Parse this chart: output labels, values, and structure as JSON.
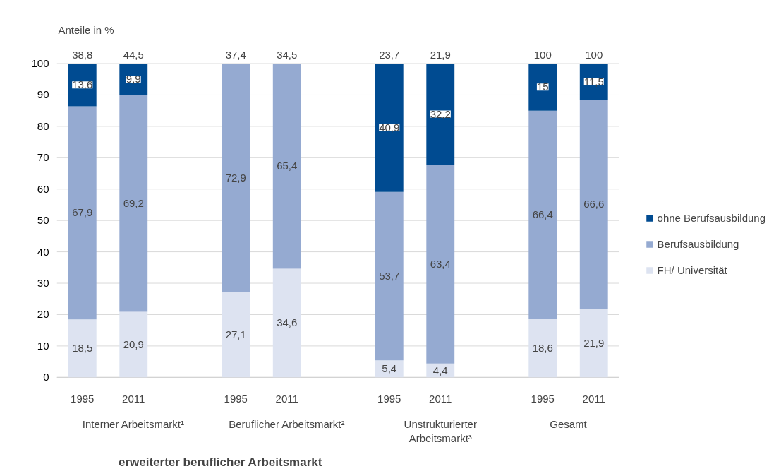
{
  "chart_data": {
    "type": "bar",
    "stacked": true,
    "ylabel": "Anteile in %",
    "categories": [
      "1995",
      "2011",
      null,
      "1995",
      "2011",
      null,
      "1995",
      "2011",
      null,
      "1995",
      "2011"
    ],
    "series": [
      {
        "name": "FH/ Universität",
        "color": "#dde3f1",
        "values": [
          18.5,
          20.9,
          null,
          27.1,
          34.6,
          null,
          5.4,
          4.4,
          null,
          18.6,
          21.9
        ],
        "value_labels": [
          "18,5",
          "20,9",
          null,
          "27,1",
          "34,6",
          null,
          "5,4",
          "4,4",
          null,
          "18,6",
          "21,9"
        ]
      },
      {
        "name": "Berufsausbildung",
        "color": "#95aad1",
        "values": [
          67.9,
          69.2,
          null,
          72.9,
          65.4,
          null,
          53.7,
          63.4,
          null,
          66.4,
          66.6
        ],
        "value_labels": [
          "67,9",
          "69,2",
          null,
          "72,9",
          "65,4",
          null,
          "53,7",
          "63,4",
          null,
          "66,4",
          "66,6"
        ]
      },
      {
        "name": "ohne Berufsausbildung",
        "color": "#004b91",
        "values": [
          13.6,
          9.9,
          null,
          null,
          null,
          null,
          40.9,
          32.2,
          null,
          15,
          11.5
        ],
        "value_labels": [
          "13,6",
          "9,9",
          null,
          null,
          null,
          null,
          "40,9",
          "32,2",
          null,
          "15",
          "11,5"
        ]
      }
    ],
    "ylim": [
      0,
      100
    ],
    "yticks": [
      0,
      10,
      20,
      30,
      40,
      50,
      60,
      70,
      80,
      90,
      100
    ],
    "grid": "y",
    "legend": "right",
    "annotations": [
      "Interner Arbeitsmarkt¹",
      "Beruflicher Arbeitsmarkt²",
      "Unstrukturierter Arbeitsmarkt³",
      "Gesamt",
      "erweiterter beruflicher Arbeitsmarkt",
      "38,8",
      "44,5",
      "37,4",
      "34,5",
      "23,7",
      "21,9",
      "100",
      "100"
    ]
  }
}
